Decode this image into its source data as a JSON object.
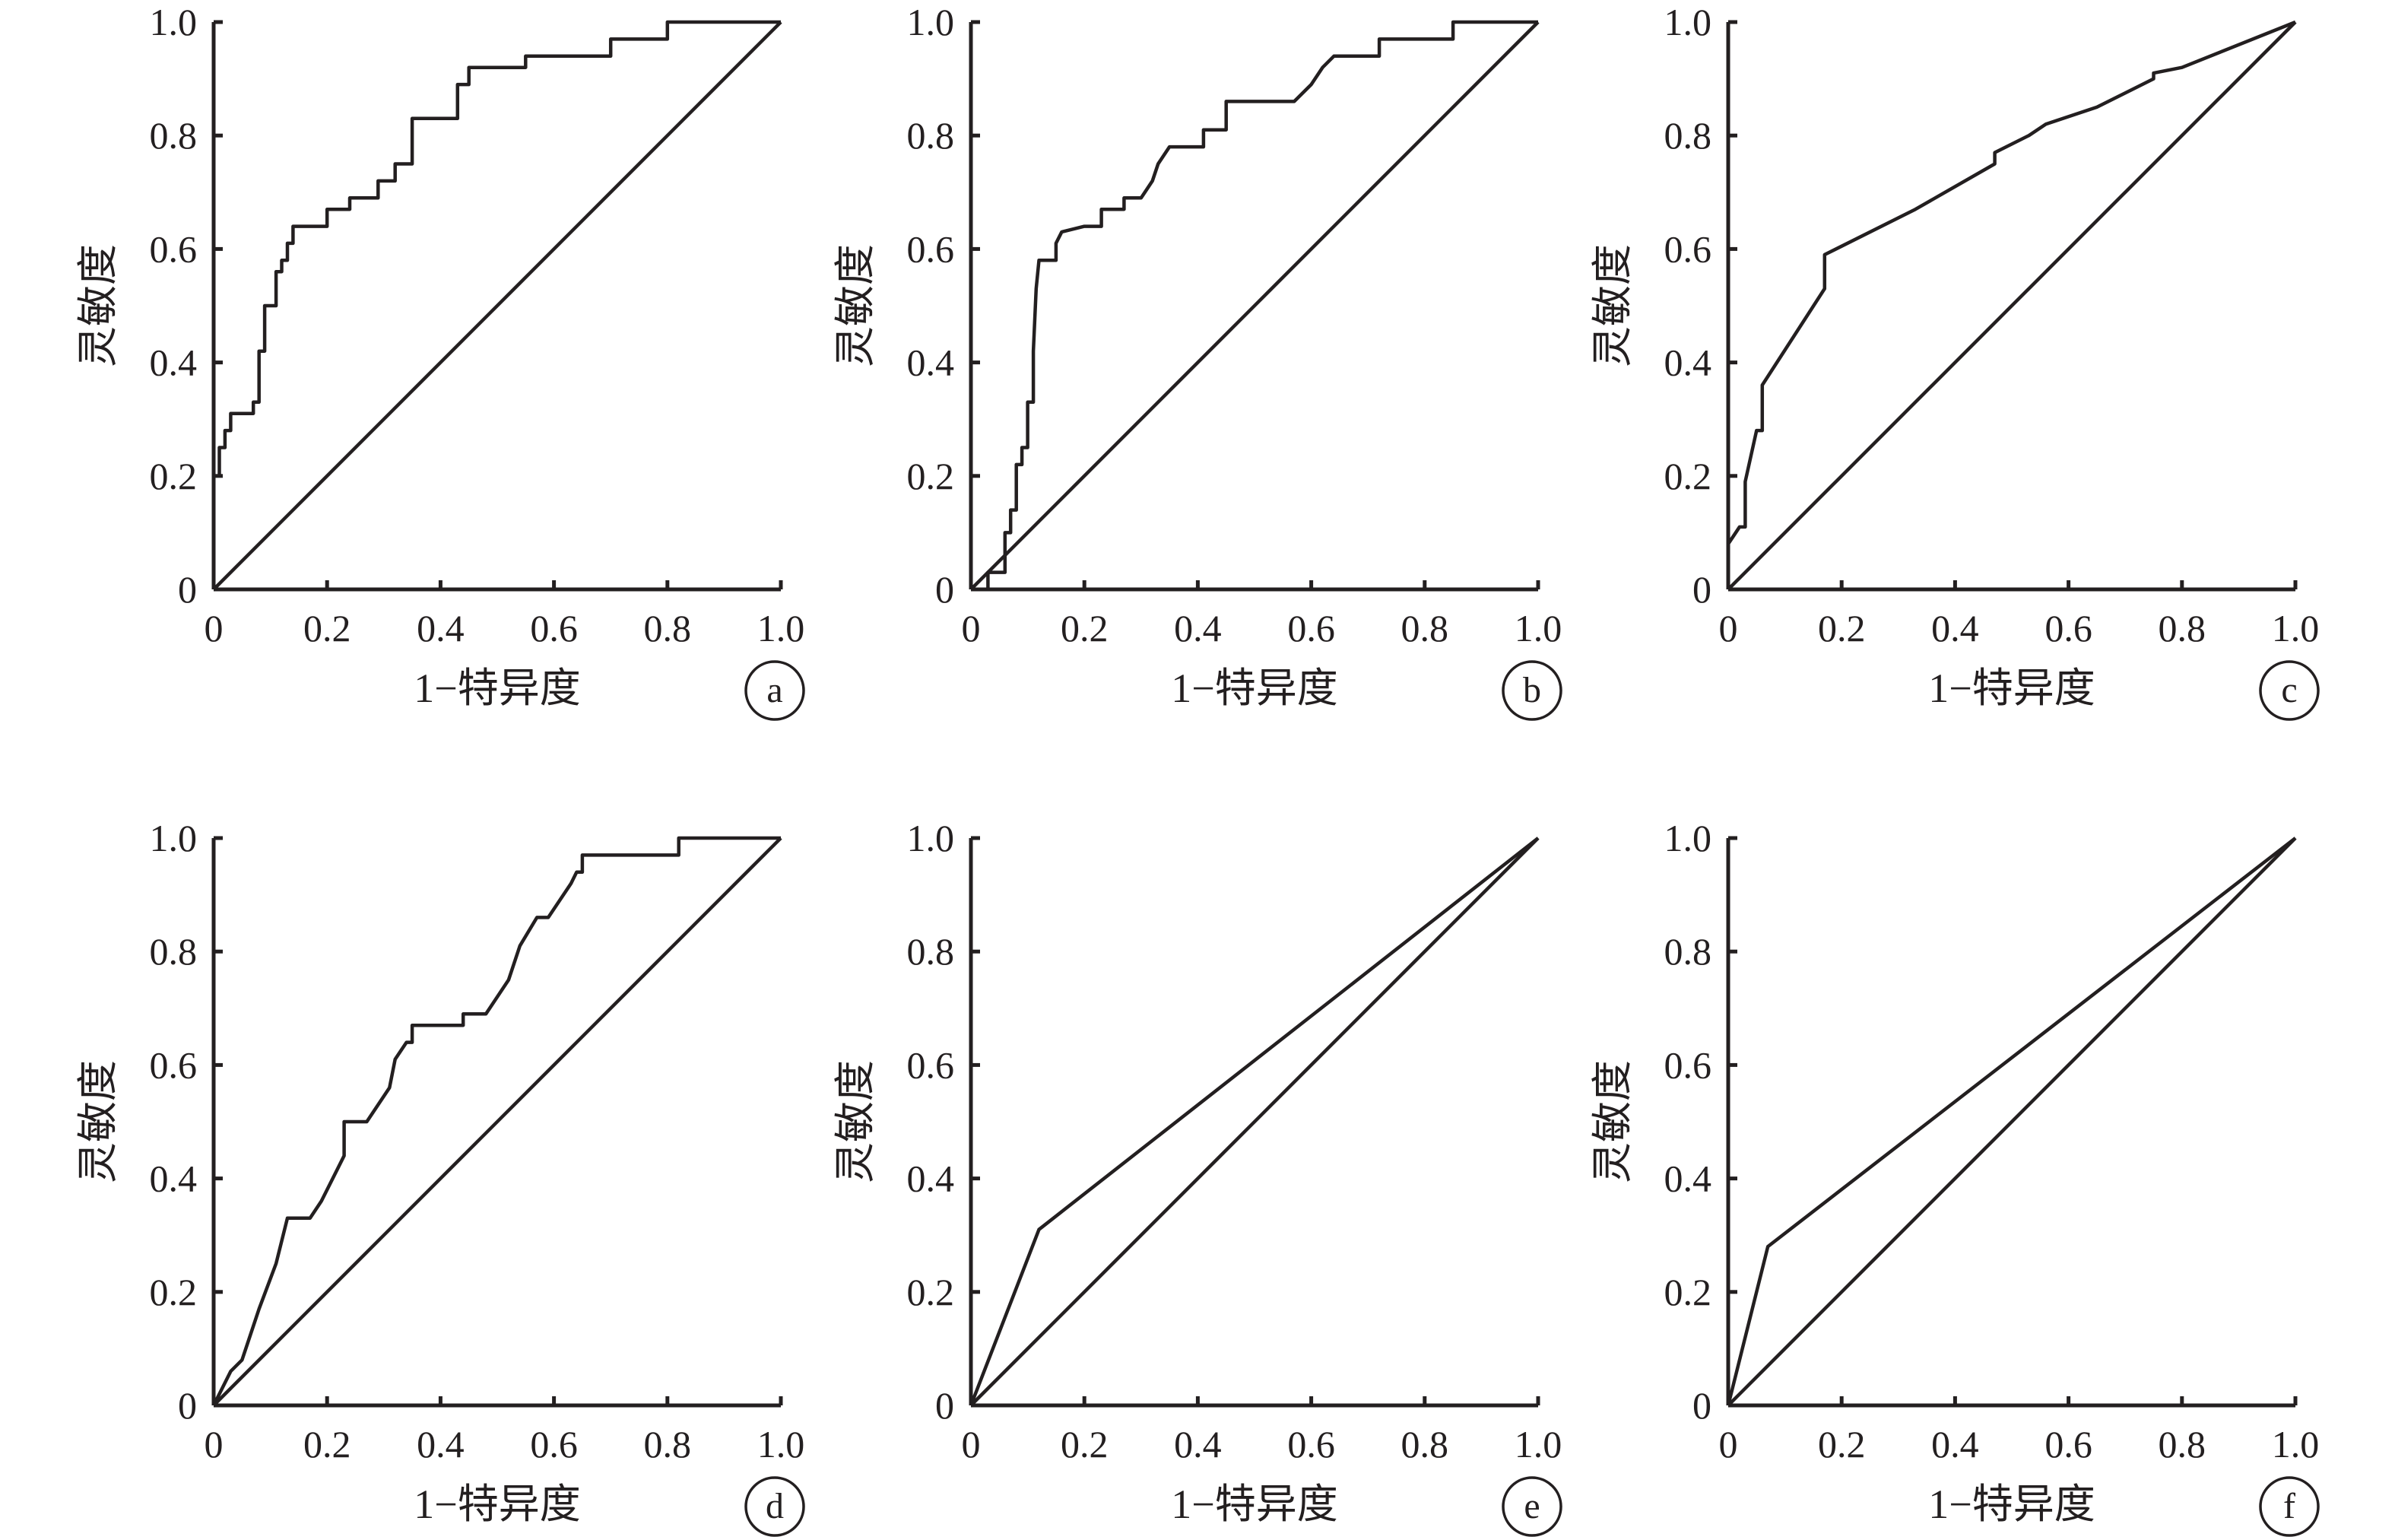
{
  "chart_data": [
    {
      "type": "line",
      "panel": "a",
      "xlabel": "1−特异度",
      "ylabel": "灵敏度",
      "xlim": [
        0,
        1
      ],
      "ylim": [
        0,
        1
      ],
      "x_ticks": [
        "0",
        "0.2",
        "0.4",
        "0.6",
        "0.8",
        "1.0"
      ],
      "y_ticks": [
        "0",
        "0.2",
        "0.4",
        "0.6",
        "0.8",
        "1.0"
      ],
      "grid": false,
      "series": [
        {
          "x": [
            0,
            0,
            0.01,
            0.01,
            0.02,
            0.02,
            0.03,
            0.03,
            0.07,
            0.07,
            0.08,
            0.08,
            0.09,
            0.09,
            0.11,
            0.11,
            0.12,
            0.12,
            0.13,
            0.13,
            0.14,
            0.14,
            0.2,
            0.2,
            0.24,
            0.24,
            0.29,
            0.29,
            0.32,
            0.32,
            0.35,
            0.35,
            0.43,
            0.43,
            0.45,
            0.45,
            0.55,
            0.55,
            0.7,
            0.7,
            0.8,
            0.8,
            1.0
          ],
          "y": [
            0,
            0.2,
            0.2,
            0.25,
            0.25,
            0.28,
            0.28,
            0.31,
            0.31,
            0.33,
            0.33,
            0.42,
            0.42,
            0.5,
            0.5,
            0.56,
            0.56,
            0.58,
            0.58,
            0.61,
            0.61,
            0.64,
            0.64,
            0.67,
            0.67,
            0.69,
            0.69,
            0.72,
            0.72,
            0.75,
            0.75,
            0.83,
            0.83,
            0.89,
            0.89,
            0.92,
            0.92,
            0.94,
            0.94,
            0.97,
            0.97,
            1.0,
            1.0
          ]
        },
        {
          "x": [
            0,
            1
          ],
          "y": [
            0,
            1
          ]
        }
      ]
    },
    {
      "type": "line",
      "panel": "b",
      "xlabel": "1−特异度",
      "ylabel": "灵敏度",
      "xlim": [
        0,
        1
      ],
      "ylim": [
        0,
        1
      ],
      "x_ticks": [
        "0",
        "0.2",
        "0.4",
        "0.6",
        "0.8",
        "1.0"
      ],
      "y_ticks": [
        "0",
        "0.2",
        "0.4",
        "0.6",
        "0.8",
        "1.0"
      ],
      "grid": false,
      "series": [
        {
          "x": [
            0.03,
            0.03,
            0.06,
            0.06,
            0.07,
            0.07,
            0.08,
            0.08,
            0.09,
            0.09,
            0.1,
            0.1,
            0.11,
            0.11,
            0.115,
            0.12,
            0.12,
            0.15,
            0.15,
            0.16,
            0.2,
            0.23,
            0.23,
            0.27,
            0.27,
            0.3,
            0.32,
            0.33,
            0.35,
            0.35,
            0.41,
            0.41,
            0.45,
            0.45,
            0.57,
            0.6,
            0.62,
            0.64,
            0.72,
            0.72,
            0.85,
            0.85,
            1.0
          ],
          "y": [
            0,
            0.03,
            0.03,
            0.1,
            0.1,
            0.14,
            0.14,
            0.22,
            0.22,
            0.25,
            0.25,
            0.33,
            0.33,
            0.42,
            0.53,
            0.58,
            0.58,
            0.58,
            0.61,
            0.63,
            0.64,
            0.64,
            0.67,
            0.67,
            0.69,
            0.69,
            0.72,
            0.75,
            0.78,
            0.78,
            0.78,
            0.81,
            0.81,
            0.86,
            0.86,
            0.89,
            0.92,
            0.94,
            0.94,
            0.97,
            0.97,
            1.0,
            1.0
          ]
        },
        {
          "x": [
            0,
            1
          ],
          "y": [
            0,
            1
          ]
        }
      ]
    },
    {
      "type": "line",
      "panel": "c",
      "xlabel": "1−特异度",
      "ylabel": "灵敏度",
      "xlim": [
        0,
        1
      ],
      "ylim": [
        0,
        1
      ],
      "x_ticks": [
        "0",
        "0.2",
        "0.4",
        "0.6",
        "0.8",
        "1.0"
      ],
      "y_ticks": [
        "0",
        "0.2",
        "0.4",
        "0.6",
        "0.8",
        "1.0"
      ],
      "grid": false,
      "series": [
        {
          "x": [
            0,
            0.02,
            0.03,
            0.03,
            0.05,
            0.06,
            0.06,
            0.17,
            0.17,
            0.33,
            0.47,
            0.47,
            0.53,
            0.56,
            0.65,
            0.75,
            0.75,
            0.8,
            1.0
          ],
          "y": [
            0.08,
            0.11,
            0.11,
            0.19,
            0.28,
            0.28,
            0.36,
            0.53,
            0.59,
            0.67,
            0.75,
            0.77,
            0.8,
            0.82,
            0.85,
            0.9,
            0.91,
            0.92,
            1.0
          ]
        },
        {
          "x": [
            0,
            1
          ],
          "y": [
            0,
            1
          ]
        }
      ]
    },
    {
      "type": "line",
      "panel": "d",
      "xlabel": "1−特异度",
      "ylabel": "灵敏度",
      "xlim": [
        0,
        1
      ],
      "ylim": [
        0,
        1
      ],
      "x_ticks": [
        "0",
        "0.2",
        "0.4",
        "0.6",
        "0.8",
        "1.0"
      ],
      "y_ticks": [
        "0",
        "0.2",
        "0.4",
        "0.6",
        "0.8",
        "1.0"
      ],
      "grid": false,
      "series": [
        {
          "x": [
            0,
            0.03,
            0.05,
            0.06,
            0.08,
            0.11,
            0.13,
            0.17,
            0.19,
            0.22,
            0.23,
            0.23,
            0.27,
            0.31,
            0.32,
            0.34,
            0.35,
            0.35,
            0.44,
            0.44,
            0.48,
            0.52,
            0.54,
            0.57,
            0.59,
            0.63,
            0.64,
            0.65,
            0.65,
            0.82,
            0.82,
            1.0
          ],
          "y": [
            0,
            0.06,
            0.08,
            0.11,
            0.17,
            0.25,
            0.33,
            0.33,
            0.36,
            0.42,
            0.44,
            0.5,
            0.5,
            0.56,
            0.61,
            0.64,
            0.64,
            0.67,
            0.67,
            0.69,
            0.69,
            0.75,
            0.81,
            0.86,
            0.86,
            0.92,
            0.94,
            0.94,
            0.97,
            0.97,
            1.0,
            1.0
          ]
        },
        {
          "x": [
            0,
            1
          ],
          "y": [
            0,
            1
          ]
        }
      ]
    },
    {
      "type": "line",
      "panel": "e",
      "xlabel": "1−特异度",
      "ylabel": "灵敏度",
      "xlim": [
        0,
        1
      ],
      "ylim": [
        0,
        1
      ],
      "x_ticks": [
        "0",
        "0.2",
        "0.4",
        "0.6",
        "0.8",
        "1.0"
      ],
      "y_ticks": [
        "0",
        "0.2",
        "0.4",
        "0.6",
        "0.8",
        "1.0"
      ],
      "grid": false,
      "series": [
        {
          "x": [
            0,
            0.12,
            1.0
          ],
          "y": [
            0,
            0.31,
            1.0
          ]
        },
        {
          "x": [
            0,
            1
          ],
          "y": [
            0,
            1
          ]
        }
      ]
    },
    {
      "type": "line",
      "panel": "f",
      "xlabel": "1−特异度",
      "ylabel": "灵敏度",
      "xlim": [
        0,
        1
      ],
      "ylim": [
        0,
        1
      ],
      "x_ticks": [
        "0",
        "0.2",
        "0.4",
        "0.6",
        "0.8",
        "1.0"
      ],
      "y_ticks": [
        "0",
        "0.2",
        "0.4",
        "0.6",
        "0.8",
        "1.0"
      ],
      "grid": false,
      "series": [
        {
          "x": [
            0,
            0.07,
            1.0
          ],
          "y": [
            0,
            0.28,
            1.0
          ]
        },
        {
          "x": [
            0,
            1
          ],
          "y": [
            0,
            1
          ]
        }
      ]
    }
  ]
}
